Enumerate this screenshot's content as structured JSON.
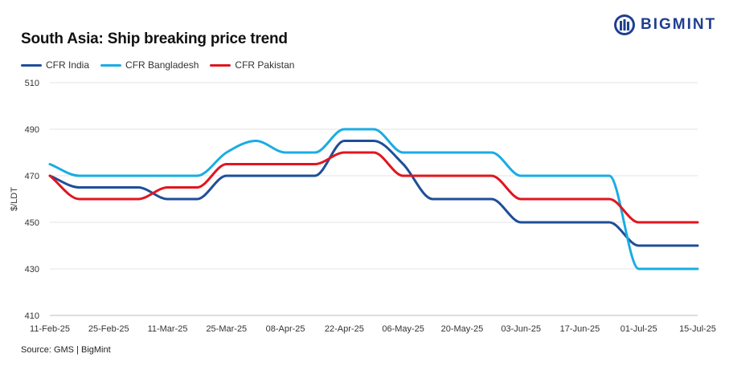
{
  "title": "South Asia: Ship breaking  price trend",
  "logo": {
    "text": "BIGMINT",
    "icon": "bigmint-logo-icon",
    "color": "#1f3f8f"
  },
  "source": "Source: GMS | BigMint",
  "chart_data": {
    "type": "line",
    "title": "South Asia: Ship breaking  price trend",
    "xlabel": "",
    "ylabel": "$/LDT",
    "ylim": [
      410,
      510
    ],
    "yticks": [
      410,
      430,
      450,
      470,
      490,
      510
    ],
    "grid": true,
    "legend": "top-left",
    "x": [
      "11-Feb-25",
      "18-Feb-25",
      "25-Feb-25",
      "04-Mar-25",
      "11-Mar-25",
      "18-Mar-25",
      "25-Mar-25",
      "01-Apr-25",
      "08-Apr-25",
      "15-Apr-25",
      "22-Apr-25",
      "29-Apr-25",
      "06-May-25",
      "13-May-25",
      "20-May-25",
      "27-May-25",
      "03-Jun-25",
      "10-Jun-25",
      "17-Jun-25",
      "24-Jun-25",
      "01-Jul-25",
      "08-Jul-25",
      "15-Jul-25"
    ],
    "xtick_labels": [
      "11-Feb-25",
      "25-Feb-25",
      "11-Mar-25",
      "25-Mar-25",
      "08-Apr-25",
      "22-Apr-25",
      "06-May-25",
      "20-May-25",
      "03-Jun-25",
      "17-Jun-25",
      "01-Jul-25",
      "15-Jul-25"
    ],
    "series": [
      {
        "name": "CFR India",
        "color": "#1f4e99",
        "values": [
          470,
          465,
          465,
          465,
          460,
          460,
          470,
          470,
          470,
          470,
          485,
          485,
          475,
          460,
          460,
          460,
          450,
          450,
          450,
          450,
          440,
          440,
          440
        ]
      },
      {
        "name": "CFR Bangladesh",
        "color": "#1aace3",
        "values": [
          475,
          470,
          470,
          470,
          470,
          470,
          480,
          485,
          480,
          480,
          490,
          490,
          480,
          480,
          480,
          480,
          470,
          470,
          470,
          470,
          430,
          430,
          430
        ]
      },
      {
        "name": "CFR Pakistan",
        "color": "#e0161f",
        "values": [
          470,
          460,
          460,
          460,
          465,
          465,
          475,
          475,
          475,
          475,
          480,
          480,
          470,
          470,
          470,
          470,
          460,
          460,
          460,
          460,
          450,
          450,
          450
        ]
      }
    ]
  }
}
